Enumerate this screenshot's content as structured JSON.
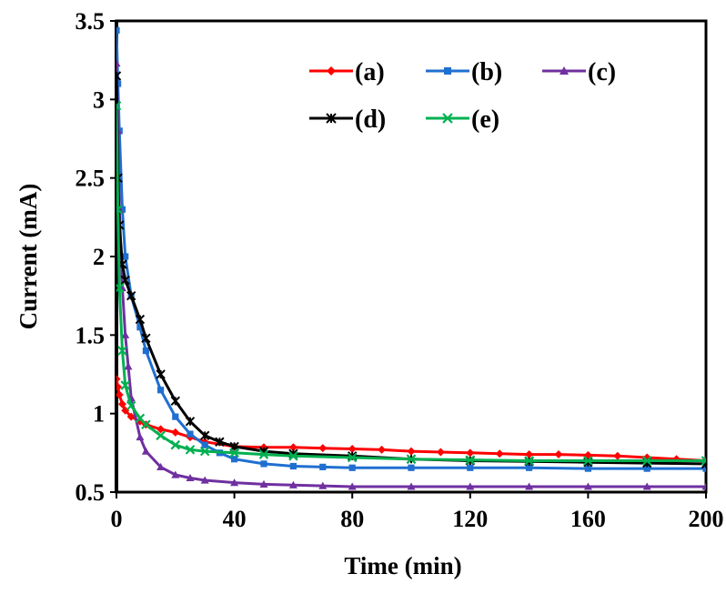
{
  "chart_data": {
    "type": "line",
    "title": "",
    "xlabel": "Time (min)",
    "ylabel": "Current (mA)",
    "xlim": [
      0,
      200
    ],
    "ylim": [
      0.5,
      3.5
    ],
    "xticks": [
      "0",
      "40",
      "80",
      "120",
      "160",
      "200"
    ],
    "yticks": [
      "0.5",
      "1",
      "1.5",
      "2",
      "2.5",
      "3",
      "3.5"
    ],
    "grid": false,
    "legend_position": "top-right",
    "series": [
      {
        "name": "(a)",
        "color": "#ff0000",
        "marker": "diamond",
        "x": [
          0,
          0.5,
          1,
          2,
          3,
          5,
          8,
          10,
          15,
          20,
          25,
          30,
          40,
          50,
          60,
          70,
          80,
          90,
          100,
          110,
          120,
          130,
          140,
          150,
          160,
          170,
          180,
          190,
          200
        ],
        "y": [
          1.22,
          1.17,
          1.12,
          1.06,
          1.02,
          0.98,
          0.95,
          0.93,
          0.9,
          0.88,
          0.85,
          0.82,
          0.79,
          0.785,
          0.785,
          0.78,
          0.775,
          0.77,
          0.76,
          0.755,
          0.75,
          0.745,
          0.74,
          0.74,
          0.735,
          0.73,
          0.72,
          0.71,
          0.7
        ]
      },
      {
        "name": "(b)",
        "color": "#1f6fd0",
        "marker": "square",
        "x": [
          0,
          0.5,
          1,
          2,
          3,
          5,
          8,
          10,
          15,
          20,
          25,
          30,
          35,
          40,
          50,
          60,
          70,
          80,
          100,
          120,
          140,
          160,
          180,
          200
        ],
        "y": [
          3.44,
          3.1,
          2.8,
          2.3,
          2.0,
          1.75,
          1.55,
          1.4,
          1.15,
          0.98,
          0.87,
          0.8,
          0.75,
          0.71,
          0.68,
          0.665,
          0.66,
          0.655,
          0.655,
          0.655,
          0.655,
          0.65,
          0.65,
          0.65
        ]
      },
      {
        "name": "(c)",
        "color": "#7030a0",
        "marker": "triangle",
        "x": [
          0,
          0.5,
          1,
          2,
          3,
          4,
          5,
          8,
          10,
          15,
          20,
          25,
          30,
          40,
          50,
          60,
          70,
          80,
          100,
          120,
          140,
          160,
          180,
          200
        ],
        "y": [
          3.23,
          2.8,
          2.3,
          1.8,
          1.5,
          1.3,
          1.1,
          0.85,
          0.76,
          0.66,
          0.61,
          0.59,
          0.575,
          0.56,
          0.55,
          0.545,
          0.54,
          0.535,
          0.535,
          0.535,
          0.535,
          0.535,
          0.535,
          0.535
        ]
      },
      {
        "name": "(d)",
        "color": "#000000",
        "marker": "star",
        "x": [
          0,
          0.5,
          1,
          2,
          3,
          5,
          8,
          10,
          15,
          20,
          25,
          30,
          35,
          40,
          50,
          60,
          80,
          100,
          120,
          140,
          160,
          180,
          200
        ],
        "y": [
          3.15,
          2.5,
          2.2,
          1.95,
          1.85,
          1.75,
          1.6,
          1.48,
          1.25,
          1.08,
          0.95,
          0.86,
          0.82,
          0.79,
          0.76,
          0.745,
          0.73,
          0.71,
          0.7,
          0.695,
          0.69,
          0.685,
          0.68
        ]
      },
      {
        "name": "(e)",
        "color": "#00b050",
        "marker": "x",
        "x": [
          0,
          0.5,
          1,
          2,
          3,
          5,
          8,
          10,
          15,
          20,
          25,
          30,
          40,
          50,
          60,
          80,
          100,
          120,
          140,
          160,
          180,
          200
        ],
        "y": [
          2.96,
          2.3,
          1.8,
          1.4,
          1.18,
          1.05,
          0.97,
          0.93,
          0.86,
          0.8,
          0.77,
          0.76,
          0.75,
          0.74,
          0.73,
          0.72,
          0.71,
          0.705,
          0.7,
          0.7,
          0.7,
          0.7
        ]
      }
    ]
  }
}
